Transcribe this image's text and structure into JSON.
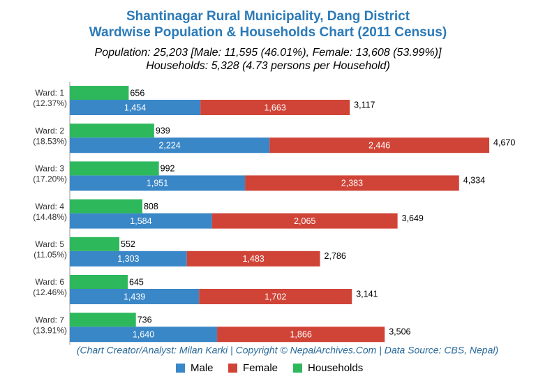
{
  "chart_data": {
    "type": "bar",
    "title": [
      "Shantinagar Rural Municipality, Dang District",
      "Wardwise Population & Households Chart (2011 Census)"
    ],
    "subtitle": [
      "Population: 25,203 [Male: 11,595 (46.01%), Female: 13,608 (53.99%)]",
      "Households: 5,328 (4.73 persons per Household)"
    ],
    "credit": "(Chart Creator/Analyst: Milan Karki | Copyright © NepalArchives.Com | Data Source: CBS, Nepal)",
    "categories": [
      "Ward: 1",
      "Ward: 2",
      "Ward: 3",
      "Ward: 4",
      "Ward: 5",
      "Ward: 6",
      "Ward: 7"
    ],
    "category_shares": [
      "(12.37%)",
      "(18.53%)",
      "(17.20%)",
      "(14.48%)",
      "(11.05%)",
      "(12.46%)",
      "(13.91%)"
    ],
    "series": [
      {
        "name": "Male",
        "color": "#3a87c8",
        "stack": true,
        "values": [
          1454,
          2224,
          1951,
          1584,
          1303,
          1439,
          1640
        ],
        "value_labels": [
          "1,454",
          "2,224",
          "1,951",
          "1,584",
          "1,303",
          "1,439",
          "1,640"
        ]
      },
      {
        "name": "Female",
        "color": "#d04437",
        "stack": true,
        "values": [
          1663,
          2446,
          2383,
          2065,
          1483,
          1702,
          1866
        ],
        "value_labels": [
          "1,663",
          "2,446",
          "2,383",
          "2,065",
          "1,483",
          "1,702",
          "1,866"
        ]
      },
      {
        "name": "Households",
        "color": "#2db85c",
        "stack": false,
        "values": [
          656,
          939,
          992,
          808,
          552,
          645,
          736
        ]
      }
    ],
    "totals": [
      3117,
      4670,
      4334,
      3649,
      2786,
      3141,
      3506
    ],
    "total_labels": [
      "3,117",
      "4,670",
      "4,334",
      "3,649",
      "2,786",
      "3,141",
      "3,506"
    ]
  }
}
